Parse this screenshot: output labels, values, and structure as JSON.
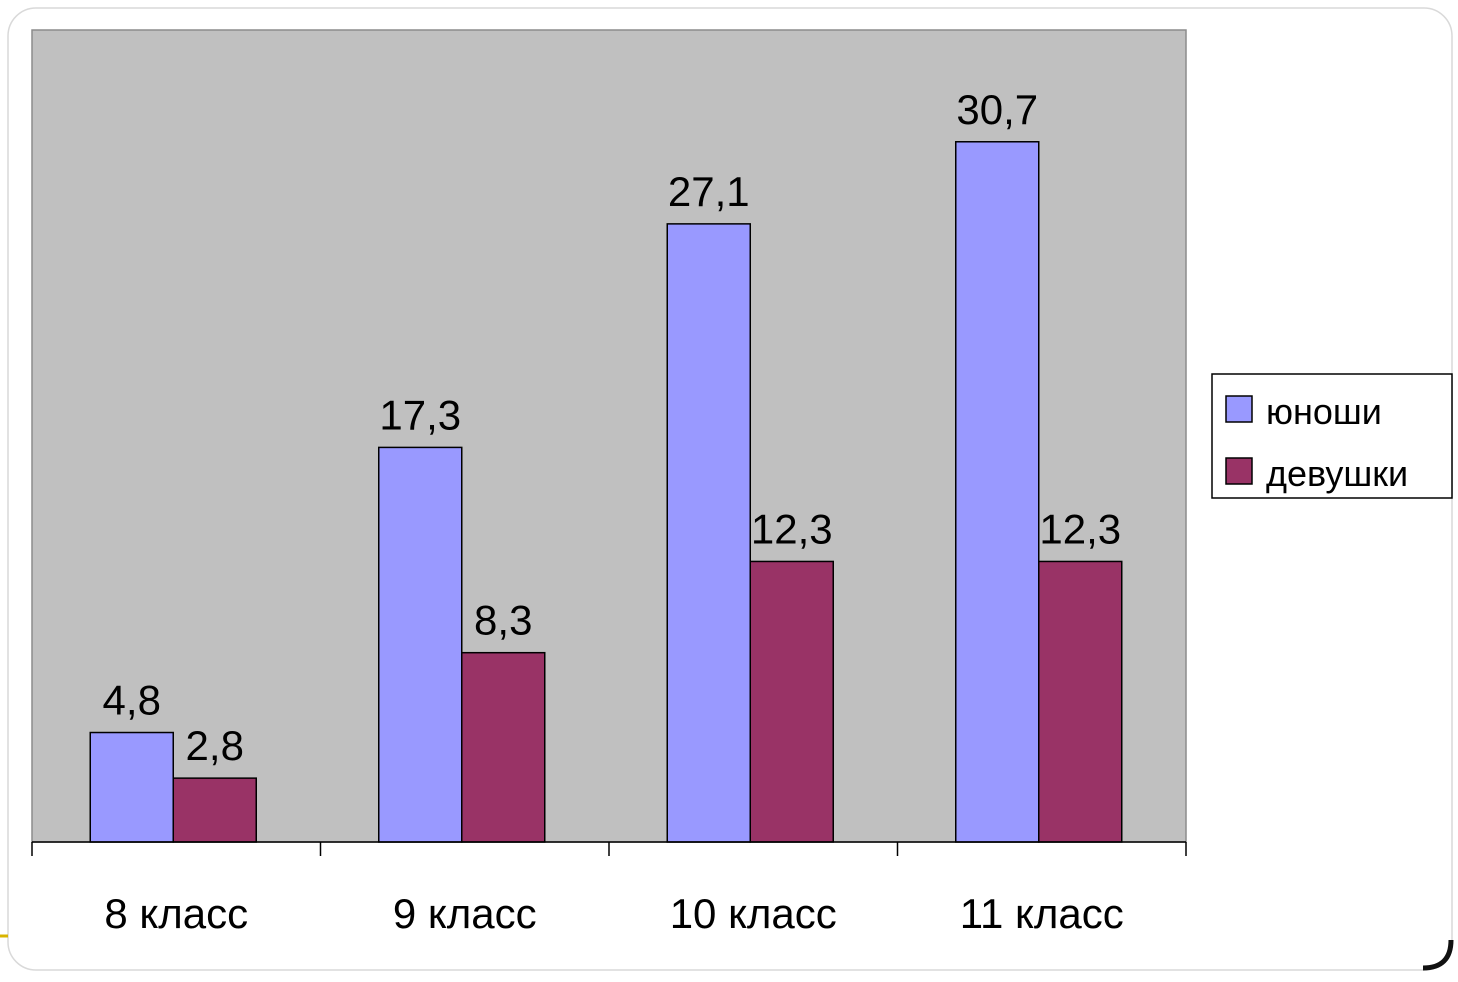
{
  "chart_data": {
    "type": "bar",
    "title": "",
    "xlabel": "",
    "ylabel": "",
    "categories": [
      "8 класс",
      "9 класс",
      "10 класс",
      "11 класс"
    ],
    "series": [
      {
        "name": "юноши",
        "values": [
          4.8,
          17.3,
          27.1,
          30.7
        ],
        "labels": [
          "4,8",
          "17,3",
          "27,1",
          "30,7"
        ],
        "color": "#9999FF"
      },
      {
        "name": "девушки",
        "values": [
          2.8,
          8.3,
          12.3,
          12.3
        ],
        "labels": [
          "2,8",
          "8,3",
          "12,3",
          "12,3"
        ],
        "color": "#993366"
      }
    ],
    "ylim": [
      0,
      35.6
    ],
    "grid": false,
    "legend_position": "right",
    "plot_background": "#C0C0C0"
  }
}
